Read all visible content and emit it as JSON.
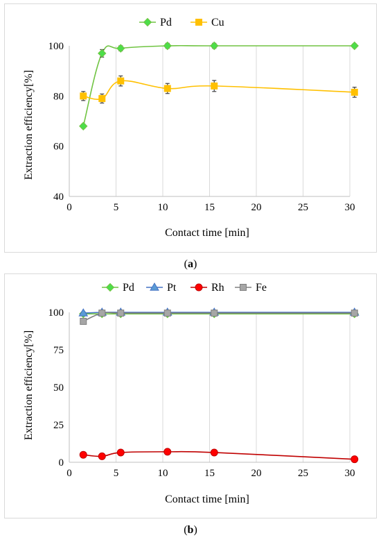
{
  "chart_data": [
    {
      "id": "a",
      "type": "line",
      "caption_prefix": "(",
      "caption_letter": "a",
      "caption_suffix": ")",
      "xlabel": "Contact time [min]",
      "ylabel": "Extraction efficiency[%]",
      "xlim": [
        0,
        30
      ],
      "ylim": [
        40,
        100
      ],
      "xticks": [
        0,
        5,
        10,
        15,
        20,
        25,
        30
      ],
      "yticks": [
        40,
        60,
        80,
        100
      ],
      "grid": "vertical",
      "legend_position": "top",
      "series": [
        {
          "name": "Pd",
          "color": "#70c442",
          "marker_fill": "#4ddd4a",
          "marker": "diamond",
          "x": [
            1.5,
            3.5,
            5.5,
            10.5,
            15.5,
            30.5
          ],
          "y": [
            68,
            97,
            99,
            100,
            100,
            100
          ],
          "err": [
            0.8,
            1.5,
            1.0,
            1.0,
            1.0,
            0.8
          ]
        },
        {
          "name": "Cu",
          "color": "#ffc000",
          "marker_fill": "#ffc000",
          "marker": "square",
          "x": [
            1.5,
            3.5,
            5.5,
            10.5,
            15.5,
            30.5
          ],
          "y": [
            80,
            79,
            86,
            83,
            84,
            81.5
          ],
          "err": [
            1.8,
            1.8,
            2.0,
            2.0,
            2.2,
            2.0
          ]
        }
      ]
    },
    {
      "id": "b",
      "type": "line",
      "caption_prefix": "(",
      "caption_letter": "b",
      "caption_suffix": ")",
      "xlabel": "Contact time [min]",
      "ylabel": "Extraction efficiency[%]",
      "xlim": [
        0,
        30
      ],
      "ylim": [
        0,
        100
      ],
      "xticks": [
        0,
        5,
        10,
        15,
        20,
        25,
        30
      ],
      "yticks": [
        0,
        25,
        50,
        75,
        100
      ],
      "grid": "vertical",
      "legend_position": "top",
      "series": [
        {
          "name": "Pd",
          "color": "#70c442",
          "marker_fill": "#4ddd4a",
          "marker": "diamond",
          "x": [
            1.5,
            3.5,
            5.5,
            10.5,
            15.5,
            30.5
          ],
          "y": [
            99,
            99,
            99,
            99,
            99,
            99
          ],
          "err": []
        },
        {
          "name": "Pt",
          "color": "#4472c4",
          "marker_fill": "#5b9bd5",
          "marker": "triangle",
          "x": [
            1.5,
            3.5,
            5.5,
            10.5,
            15.5,
            30.5
          ],
          "y": [
            99.5,
            100,
            100,
            100,
            100,
            100
          ],
          "err": []
        },
        {
          "name": "Rh",
          "color": "#c00000",
          "marker_fill": "#ff0000",
          "marker": "circle",
          "x": [
            1.5,
            3.5,
            5.5,
            10.5,
            15.5,
            30.5
          ],
          "y": [
            5,
            4,
            6.5,
            7,
            6.5,
            2
          ],
          "err": []
        },
        {
          "name": "Fe",
          "color": "#808080",
          "marker_fill": "#a6a6a6",
          "marker": "square",
          "x": [
            1.5,
            3.5,
            5.5,
            10.5,
            15.5,
            30.5
          ],
          "y": [
            94,
            99.5,
            99.5,
            99.5,
            99.5,
            99.5
          ],
          "err": []
        }
      ]
    }
  ]
}
